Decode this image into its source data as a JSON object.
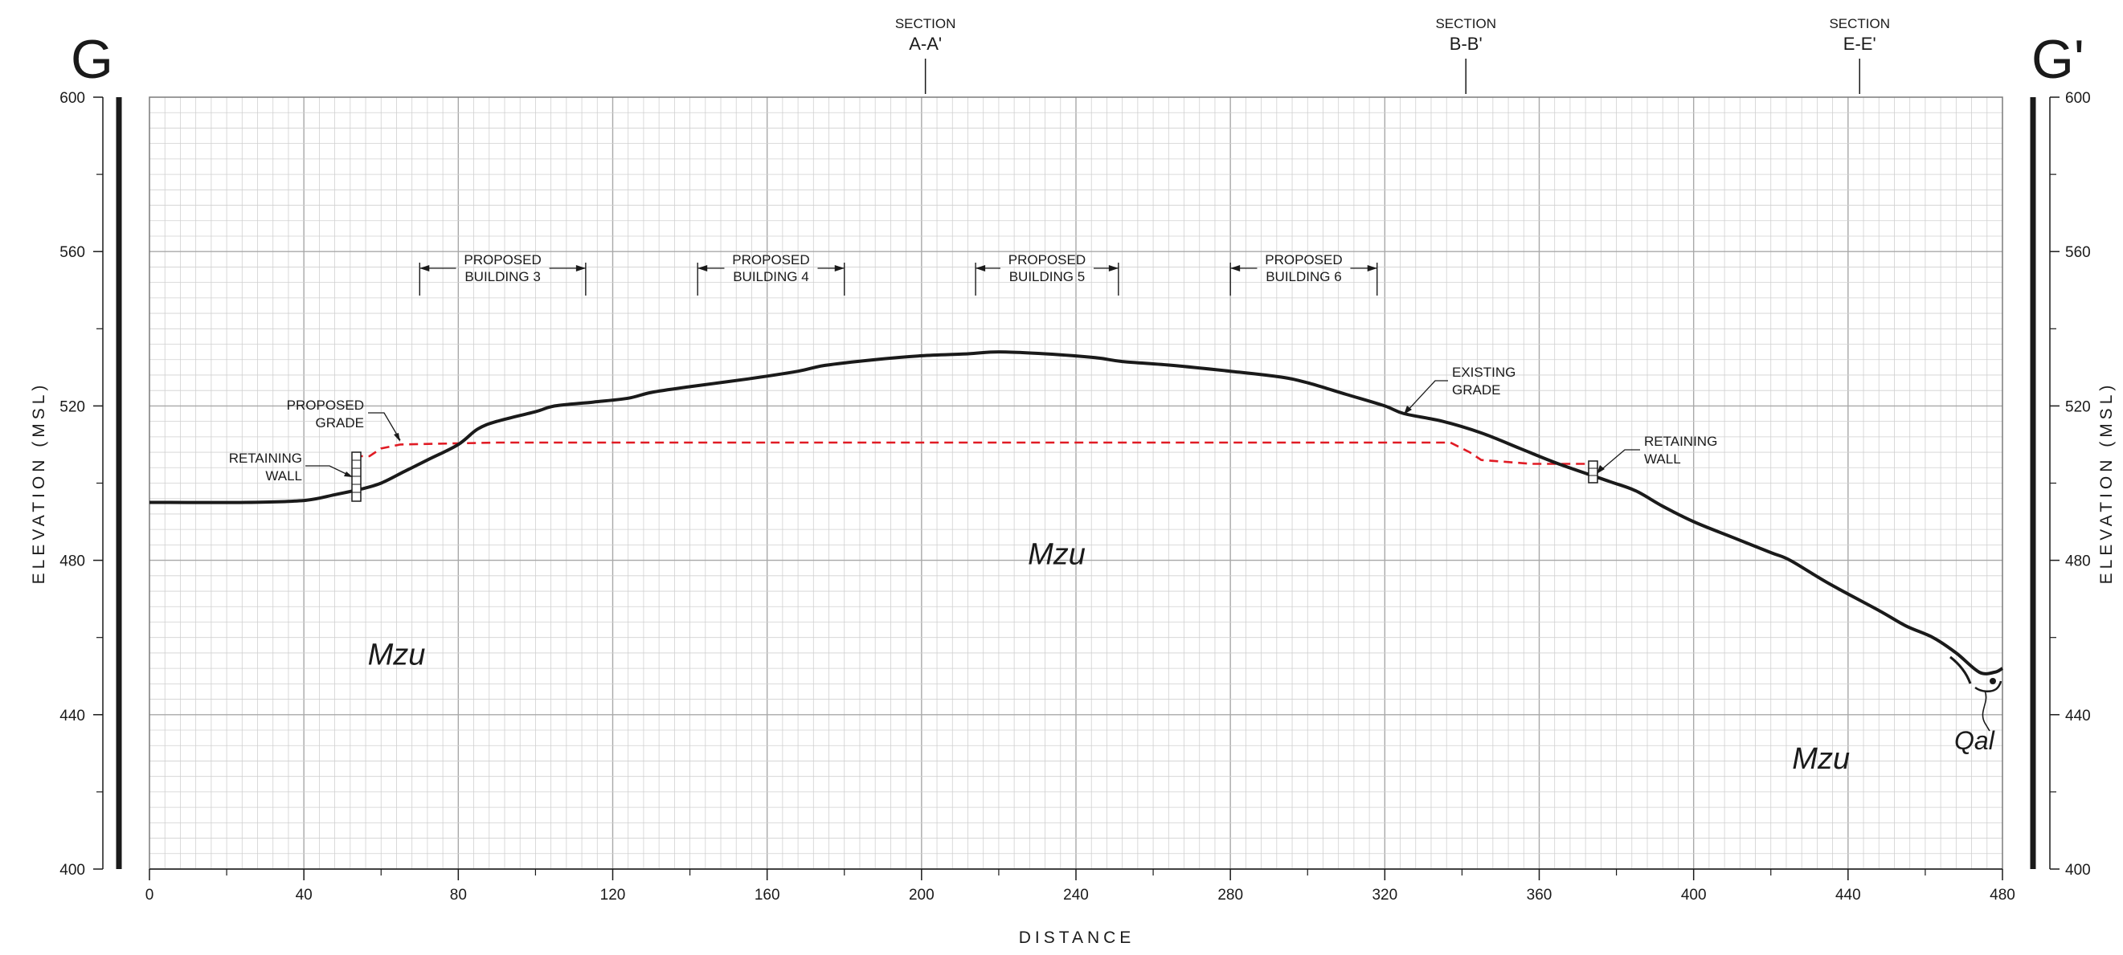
{
  "section_start": "G",
  "section_end": "G'",
  "axes": {
    "x_title": "DISTANCE",
    "y_title": "ELEVATION (MSL)",
    "x_range": [
      0,
      480
    ],
    "y_range": [
      400,
      600
    ],
    "x_ticks": [
      "0",
      "40",
      "80",
      "120",
      "160",
      "200",
      "240",
      "280",
      "320",
      "360",
      "400",
      "440",
      "480"
    ],
    "y_ticks": [
      "600",
      "560",
      "520",
      "480",
      "440",
      "400"
    ],
    "grid": true
  },
  "section_markers": [
    {
      "label": "SECTION",
      "id": "A-A'",
      "x": 201
    },
    {
      "label": "SECTION",
      "id": "B-B'",
      "x": 341
    },
    {
      "label": "SECTION",
      "id": "E-E'",
      "x": 443
    }
  ],
  "buildings": [
    {
      "line1": "PROPOSED",
      "line2": "BUILDING 3",
      "x_start": 70,
      "x_end": 113
    },
    {
      "line1": "PROPOSED",
      "line2": "BUILDING 4",
      "x_start": 142,
      "x_end": 180
    },
    {
      "line1": "PROPOSED",
      "line2": "BUILDING 5",
      "x_start": 214,
      "x_end": 251
    },
    {
      "line1": "PROPOSED",
      "line2": "BUILDING 6",
      "x_start": 280,
      "x_end": 318
    }
  ],
  "callouts": {
    "proposed_grade": [
      "PROPOSED",
      "GRADE"
    ],
    "existing_grade": [
      "EXISTING",
      "GRADE"
    ],
    "retaining_wall_left": [
      "RETAINING",
      "WALL"
    ],
    "retaining_wall_right": [
      "RETAINING",
      "WALL"
    ]
  },
  "units": [
    {
      "label": "Mzu",
      "x": 64,
      "y": 453
    },
    {
      "label": "Mzu",
      "x": 235,
      "y": 479
    },
    {
      "label": "Mzu",
      "x": 433,
      "y": 426
    }
  ],
  "qal_label": "Qal",
  "colors": {
    "existing_grade": "#1a1a1a",
    "proposed_grade": "#e01b24",
    "grid_minor": "#d0d0d0",
    "grid_major": "#a8a8a8"
  },
  "chart_data": {
    "type": "line",
    "title": "",
    "xlabel": "DISTANCE",
    "ylabel": "ELEVATION (MSL)",
    "xlim": [
      0,
      480
    ],
    "ylim": [
      400,
      600
    ],
    "series": [
      {
        "style": "solid",
        "points": [
          [
            0,
            495
          ],
          [
            25,
            495
          ],
          [
            40,
            495.5
          ],
          [
            48,
            497
          ],
          [
            55,
            498.5
          ],
          [
            60,
            500
          ],
          [
            66,
            503
          ],
          [
            72,
            506
          ],
          [
            80,
            510
          ],
          [
            85,
            514
          ],
          [
            90,
            516
          ],
          [
            100,
            518.5
          ],
          [
            105,
            520
          ],
          [
            115,
            521
          ],
          [
            124,
            522
          ],
          [
            130,
            523.5
          ],
          [
            140,
            525
          ],
          [
            155,
            527
          ],
          [
            168,
            529
          ],
          [
            175,
            530.5
          ],
          [
            188,
            532
          ],
          [
            200,
            533
          ],
          [
            212,
            533.5
          ],
          [
            220,
            534
          ],
          [
            232,
            533.5
          ],
          [
            245,
            532.5
          ],
          [
            252,
            531.5
          ],
          [
            265,
            530.5
          ],
          [
            280,
            529
          ],
          [
            293,
            527.5
          ],
          [
            300,
            526
          ],
          [
            310,
            523
          ],
          [
            320,
            520
          ],
          [
            325,
            518
          ],
          [
            335,
            516
          ],
          [
            345,
            513
          ],
          [
            355,
            509
          ],
          [
            365,
            505
          ],
          [
            378,
            500.5
          ],
          [
            385,
            498
          ],
          [
            392,
            494
          ],
          [
            400,
            490
          ],
          [
            410,
            486
          ],
          [
            420,
            482
          ],
          [
            425,
            480
          ],
          [
            435,
            474
          ],
          [
            448,
            467
          ],
          [
            455,
            463
          ],
          [
            462,
            460
          ],
          [
            468,
            456
          ],
          [
            474,
            451
          ],
          [
            478,
            451
          ],
          [
            480,
            452
          ]
        ]
      },
      {
        "style": "dashed",
        "points": [
          [
            53,
            507
          ],
          [
            57,
            507
          ],
          [
            60,
            509
          ],
          [
            65,
            510
          ],
          [
            90,
            510.5
          ],
          [
            200,
            510.5
          ],
          [
            300,
            510.5
          ],
          [
            337,
            510.5
          ],
          [
            342,
            508
          ],
          [
            345,
            506
          ],
          [
            358,
            505
          ],
          [
            374,
            505
          ]
        ]
      }
    ]
  }
}
